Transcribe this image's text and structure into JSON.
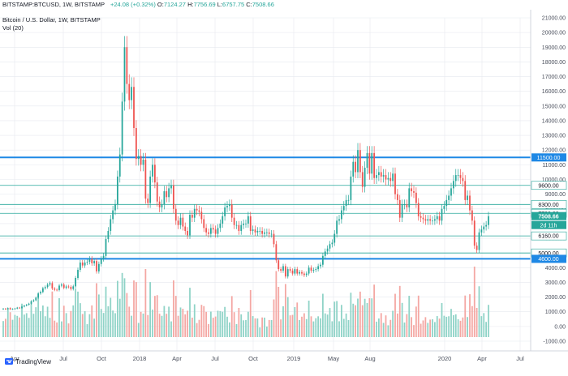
{
  "header": {
    "symbol": "BITSTAMP:BTCUSD, 1W, BITSTAMP",
    "change": "+24.08 (+0.32%)",
    "open_label": "O:",
    "open": "7124.27",
    "high_label": "H:",
    "high": "7756.69",
    "low_label": "L:",
    "low": "6757.75",
    "close_label": "C:",
    "close": "7508.66",
    "title": "Bitcoin / U.S. Dollar, 1W, BITSTAMP",
    "volume_label": "Vol (20)"
  },
  "branding": {
    "logo_text": "TradingView"
  },
  "colors": {
    "up": "#26a69a",
    "down": "#ef5350",
    "up_volume": "#8fd3c7",
    "down_volume": "#f4a7a3",
    "level_line": "#1e88e5",
    "grid": "#e6e9ef",
    "price_tag": "#26a69a",
    "blue_tag": "#1e88e5"
  },
  "chart_data": {
    "type": "candlestick",
    "title": "Bitcoin / U.S. Dollar, 1W, BITSTAMP",
    "xlabel": "",
    "ylabel": "",
    "x_ticks": [
      "Apr",
      "Jul",
      "Oct",
      "2018",
      "Apr",
      "Jul",
      "Oct",
      "2019",
      "May",
      "Aug",
      "2020",
      "Apr",
      "Jul"
    ],
    "y_ticks": [
      "21000.00",
      "20000.00",
      "19000.00",
      "18000.00",
      "17000.00",
      "16000.00",
      "15000.00",
      "14000.00",
      "13000.00",
      "12000.00",
      "11000.00",
      "10000.00",
      "9000.00",
      "8000.00",
      "7000.00",
      "6000.00",
      "5000.00",
      "4000.00",
      "3000.00",
      "2000.00",
      "1000.00",
      "0.00",
      "-1000.00"
    ],
    "ylim": [
      -1000,
      21000
    ],
    "grid": true,
    "horizontal_levels": [
      {
        "value": 11500,
        "label": "11500.00",
        "style": "thick"
      },
      {
        "value": 9600,
        "label": "9600.00",
        "style": "thin"
      },
      {
        "value": 8300,
        "label": "8300.00",
        "style": "thin"
      },
      {
        "value": 7700,
        "label": "7700.00",
        "style": "thin"
      },
      {
        "value": 6160,
        "label": "6160.00",
        "style": "thin"
      },
      {
        "value": 5000,
        "label": "5000.00",
        "style": "thin"
      },
      {
        "value": 4600,
        "label": "4600.00",
        "style": "thick"
      }
    ],
    "last_price": {
      "value": 7508.66,
      "label": "7508.66",
      "countdown": "2d 11h"
    },
    "candles_price": [
      1210,
      1180,
      1250,
      1170,
      1190,
      1220,
      1280,
      1250,
      1350,
      1420,
      1480,
      1550,
      1720,
      1780,
      1960,
      2250,
      2350,
      2600,
      2680,
      2850,
      2950,
      2580,
      2500,
      2480,
      2780,
      2850,
      2630,
      2720,
      2690,
      2550,
      2730,
      3300,
      3850,
      4350,
      4150,
      4350,
      4400,
      4600,
      4300,
      4450,
      3750,
      4250,
      4600,
      4800,
      5950,
      6500,
      7300,
      7900,
      8300,
      10200,
      11700,
      15300,
      19000,
      16500,
      15400,
      16300,
      13500,
      11400,
      11600,
      11000,
      11350,
      8700,
      8400,
      10200,
      11000,
      9800,
      8500,
      8100,
      8300,
      9200,
      8800,
      9400,
      9600,
      8000,
      7200,
      6900,
      7400,
      6800,
      6500,
      6200,
      7600,
      7400,
      8000,
      7900,
      7800,
      7300,
      6700,
      6400,
      6300,
      6700,
      6600,
      6300,
      6700,
      7000,
      7500,
      8100,
      8200,
      8300,
      7400,
      6900,
      6900,
      6500,
      6900,
      7000,
      7000,
      7500,
      6500,
      6600,
      6400,
      6500,
      6500,
      6300,
      6400,
      6400,
      6300,
      6300,
      5600,
      4500,
      3900,
      3800,
      4100,
      3400,
      3900,
      3800,
      3600,
      3900,
      3600,
      3700,
      3600,
      3500,
      3600,
      4000,
      3800,
      3850,
      3900,
      4100,
      4200,
      4800,
      5100,
      5300,
      5600,
      5700,
      6300,
      7200,
      7300,
      7900,
      8200,
      8600,
      8600,
      10200,
      11200,
      10500,
      12000,
      10500,
      9500,
      10800,
      11800,
      10400,
      11800,
      10100,
      10300,
      10500,
      10200,
      10300,
      10000,
      10100,
      9900,
      10400,
      9000,
      8600,
      7400,
      8300,
      8300,
      8100,
      9400,
      9200,
      9100,
      8400,
      7500,
      7400,
      7300,
      7200,
      7300,
      7200,
      7200,
      7300,
      7500,
      7200,
      8000,
      8200,
      8600,
      8900,
      9400,
      9900,
      10300,
      10300,
      10100,
      9900,
      8600,
      8900,
      7900,
      7200,
      5500,
      5200,
      6400,
      6600,
      6800,
      6900,
      7500
    ]
  }
}
